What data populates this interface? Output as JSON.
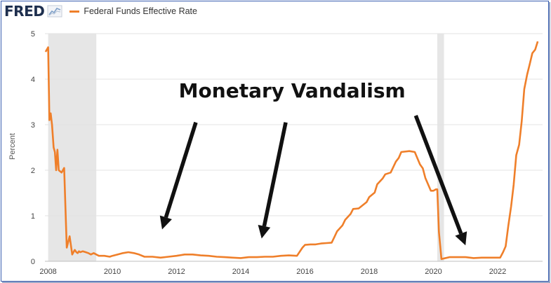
{
  "header": {
    "logo_text": "FRED",
    "logo_icon": "line-chart-icon",
    "legend_label": "Federal Funds Effective Rate",
    "legend_color": "#ef7f2a"
  },
  "chart_data": {
    "type": "line",
    "title": "",
    "xlabel": "",
    "ylabel": "Percent",
    "xlim": [
      2007.9,
      2023.4
    ],
    "ylim": [
      0,
      5
    ],
    "yticks": [
      0,
      1,
      2,
      3,
      4,
      5
    ],
    "xticks": [
      2008,
      2010,
      2012,
      2014,
      2016,
      2018,
      2020,
      2022
    ],
    "grid": "horizontal",
    "recession_shading": [
      [
        2008.0,
        2009.5
      ],
      [
        2020.12,
        2020.33
      ]
    ],
    "series": [
      {
        "name": "Federal Funds Effective Rate",
        "color": "#ef7f2a",
        "x": [
          2007.92,
          2008.0,
          2008.04,
          2008.08,
          2008.12,
          2008.17,
          2008.21,
          2008.25,
          2008.29,
          2008.33,
          2008.42,
          2008.5,
          2008.58,
          2008.67,
          2008.75,
          2008.79,
          2008.83,
          2008.88,
          2008.92,
          2008.96,
          2009.0,
          2009.08,
          2009.17,
          2009.25,
          2009.33,
          2009.42,
          2009.5,
          2009.58,
          2009.75,
          2009.92,
          2010.0,
          2010.17,
          2010.33,
          2010.5,
          2010.67,
          2010.83,
          2011.0,
          2011.25,
          2011.5,
          2011.75,
          2012.0,
          2012.25,
          2012.5,
          2012.75,
          2013.0,
          2013.25,
          2013.5,
          2013.75,
          2014.0,
          2014.25,
          2014.5,
          2014.75,
          2015.0,
          2015.25,
          2015.5,
          2015.75,
          2015.92,
          2016.0,
          2016.17,
          2016.33,
          2016.5,
          2016.67,
          2016.83,
          2016.92,
          2017.0,
          2017.17,
          2017.25,
          2017.42,
          2017.5,
          2017.67,
          2017.92,
          2018.0,
          2018.17,
          2018.25,
          2018.42,
          2018.5,
          2018.67,
          2018.83,
          2018.92,
          2019.0,
          2019.25,
          2019.42,
          2019.58,
          2019.67,
          2019.75,
          2019.92,
          2020.0,
          2020.08,
          2020.12,
          2020.17,
          2020.25,
          2020.5,
          2020.75,
          2021.0,
          2021.25,
          2021.5,
          2021.75,
          2022.0,
          2022.08,
          2022.17,
          2022.25,
          2022.33,
          2022.42,
          2022.5,
          2022.58,
          2022.67,
          2022.75,
          2022.83,
          2022.92,
          2023.0,
          2023.08,
          2023.17,
          2023.25
        ],
        "y": [
          4.6,
          4.7,
          3.1,
          3.25,
          3.0,
          2.5,
          2.4,
          2.0,
          2.45,
          2.0,
          1.95,
          2.05,
          0.3,
          0.55,
          0.15,
          0.2,
          0.25,
          0.2,
          0.18,
          0.22,
          0.2,
          0.22,
          0.2,
          0.18,
          0.15,
          0.18,
          0.15,
          0.12,
          0.12,
          0.1,
          0.12,
          0.15,
          0.18,
          0.2,
          0.18,
          0.15,
          0.1,
          0.1,
          0.08,
          0.1,
          0.12,
          0.15,
          0.15,
          0.13,
          0.12,
          0.1,
          0.09,
          0.08,
          0.07,
          0.09,
          0.09,
          0.1,
          0.1,
          0.12,
          0.13,
          0.12,
          0.3,
          0.36,
          0.37,
          0.37,
          0.39,
          0.4,
          0.41,
          0.54,
          0.66,
          0.79,
          0.91,
          1.04,
          1.15,
          1.16,
          1.3,
          1.41,
          1.51,
          1.69,
          1.82,
          1.91,
          1.95,
          2.19,
          2.27,
          2.4,
          2.42,
          2.4,
          2.13,
          2.04,
          1.83,
          1.55,
          1.55,
          1.58,
          1.58,
          0.65,
          0.05,
          0.09,
          0.09,
          0.09,
          0.07,
          0.08,
          0.08,
          0.08,
          0.08,
          0.2,
          0.33,
          0.77,
          1.21,
          1.68,
          2.33,
          2.56,
          3.08,
          3.78,
          4.1,
          4.33,
          4.57,
          4.65,
          4.83
        ]
      }
    ],
    "annotations": [
      {
        "type": "text",
        "text": "Monetary Vandalism",
        "x": 2015.6,
        "y": 3.6
      },
      {
        "type": "arrow",
        "from": [
          2012.6,
          3.05
        ],
        "to": [
          2011.55,
          0.7
        ]
      },
      {
        "type": "arrow",
        "from": [
          2015.4,
          3.05
        ],
        "to": [
          2014.65,
          0.5
        ]
      },
      {
        "type": "arrow",
        "from": [
          2019.45,
          3.2
        ],
        "to": [
          2021.0,
          0.35
        ]
      }
    ]
  }
}
